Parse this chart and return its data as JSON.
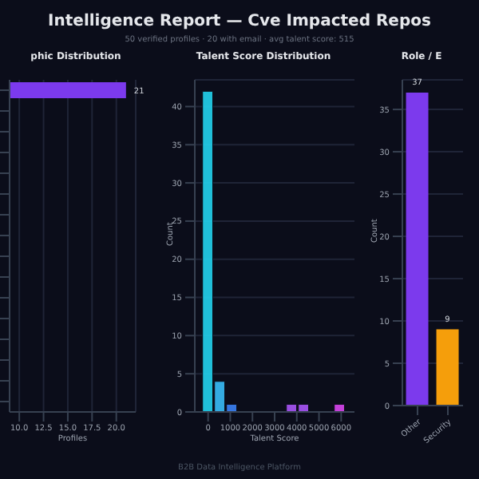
{
  "chart_data": [
    {
      "type": "other",
      "title": "Intelligence Report — Cve Impacted Repos",
      "subtitle": "50 verified profiles · 20 with email · avg talent score: 515",
      "annotations": [
        "B2B Data Intelligence Platform"
      ]
    },
    {
      "type": "bar",
      "title": "phic Distribution",
      "orientation": "horizontal",
      "categories": [
        null,
        null,
        null,
        null,
        null,
        null,
        null,
        null,
        null,
        null,
        null,
        null,
        null,
        null,
        null,
        null
      ],
      "values": [
        21,
        null,
        null,
        null,
        null,
        null,
        null,
        null,
        null,
        null,
        null,
        null,
        null,
        null,
        null,
        null
      ],
      "color": "#7c3aed",
      "data_labels": true,
      "xlim": [
        9,
        22
      ],
      "xticks": [
        {
          "value": 10,
          "label": "10.0"
        },
        {
          "value": 12.5,
          "label": "12.5"
        },
        {
          "value": 15,
          "label": "15.0"
        },
        {
          "value": 17.5,
          "label": "17.5"
        },
        {
          "value": 20,
          "label": "20.0"
        }
      ],
      "xlabel": "Profiles",
      "grid": "x"
    },
    {
      "type": "histogram",
      "title": "Talent Score Distribution",
      "bins": [
        -250,
        290,
        830,
        1370,
        1910,
        2450,
        2990,
        3530,
        4070,
        4610,
        5150,
        5690,
        6230
      ],
      "values": [
        42,
        4,
        1,
        0,
        0,
        0,
        0,
        1,
        1,
        0,
        0,
        1
      ],
      "colors": [
        "#22d3ee",
        "#38bdf8",
        "#3b82f6",
        "#3b82f6",
        "#3b82f6",
        "#3b82f6",
        "#3b82f6",
        "#a855f7",
        "#a855f7",
        "#a855f7",
        "#a855f7",
        "#d946ef"
      ],
      "xlim": [
        -600,
        6600
      ],
      "xticks": [
        0,
        1000,
        2000,
        3000,
        4000,
        5000,
        6000
      ],
      "ylim": [
        0,
        43.5
      ],
      "yticks": [
        0,
        5,
        10,
        15,
        20,
        25,
        30,
        35,
        40
      ],
      "xlabel": "Talent Score",
      "ylabel": "Count",
      "grid": "y"
    },
    {
      "type": "bar",
      "title": "Role / E",
      "categories": [
        "Other",
        "Security"
      ],
      "values": [
        37,
        9
      ],
      "colors": [
        "#7c3aed",
        "#f59e0b"
      ],
      "data_labels": true,
      "ylim": [
        0,
        38.5
      ],
      "yticks": [
        0,
        5,
        10,
        15,
        20,
        25,
        30,
        35
      ],
      "ylabel": "Count",
      "grid": "y"
    }
  ]
}
